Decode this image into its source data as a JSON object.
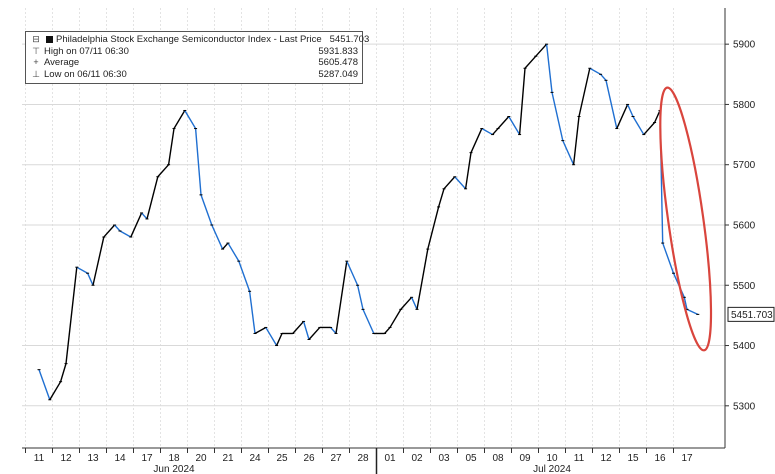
{
  "legend": {
    "rows": [
      {
        "icon": "black-square-icon",
        "label": "Philadelphia Stock Exchange Semiconductor Index - Last Price",
        "value": "5451.703"
      },
      {
        "icon": "high-marker-icon",
        "label": "High on 07/11 06:30",
        "value": "5931.833"
      },
      {
        "icon": "average-marker-icon",
        "label": "Average",
        "value": "5605.478"
      },
      {
        "icon": "low-marker-icon",
        "label": "Low on 06/11 06:30",
        "value": "5287.049"
      }
    ]
  },
  "chart_data": {
    "type": "line",
    "series_name": "Philadelphia Stock Exchange Semiconductor Index",
    "ylim": [
      5230,
      5960
    ],
    "yticks": [
      5300,
      5400,
      5500,
      5600,
      5700,
      5800,
      5900
    ],
    "ytick_labels": [
      "5300",
      "5400",
      "5500",
      "5600",
      "5700",
      "5800",
      "5900"
    ],
    "xticks": [
      "11",
      "12",
      "13",
      "14",
      "17",
      "18",
      "20",
      "21",
      "24",
      "25",
      "26",
      "27",
      "28",
      "01",
      "02",
      "03",
      "05",
      "08",
      "09",
      "10",
      "11",
      "12",
      "15",
      "16",
      "17"
    ],
    "month_labels": [
      {
        "label": "Jun 2024",
        "at_tick": 5
      },
      {
        "label": "Jul 2024",
        "at_tick": 19
      }
    ],
    "last_price_label": "5451.703",
    "last_price": 5451.703,
    "colors": {
      "up": "#000000",
      "down": "#1f6fd1",
      "annotation": "#d9453d"
    },
    "ellipse_annotation": {
      "x_from_tick": 23.3,
      "x_to_tick": 24.6,
      "y_from": 5390,
      "y_to": 5830
    },
    "x_positions": [
      0,
      0.4,
      0.8,
      1,
      1.4,
      1.8,
      2,
      2.4,
      2.8,
      3,
      3.4,
      3.8,
      4,
      4.4,
      4.8,
      5,
      5.4,
      5.8,
      6,
      6.4,
      6.8,
      7,
      7.4,
      7.8,
      8,
      8.4,
      8.8,
      9,
      9.4,
      9.8,
      10,
      10.4,
      10.8,
      11,
      11.4,
      11.8,
      12,
      12.4,
      12.8,
      13,
      13.4,
      13.8,
      14,
      14.4,
      14.8,
      15,
      15.4,
      15.8,
      16,
      16.4,
      16.8,
      17,
      17.4,
      17.8,
      18,
      18.4,
      18.8,
      19,
      19.4,
      19.8,
      20,
      20.4,
      20.8,
      21,
      21.4,
      21.8,
      22,
      22.4,
      22.8,
      23,
      23.1,
      23.5,
      23.9,
      24,
      24.4
    ],
    "values": [
      5360,
      5310,
      5340,
      5370,
      5530,
      5520,
      5500,
      5580,
      5600,
      5590,
      5580,
      5620,
      5610,
      5680,
      5700,
      5760,
      5790,
      5760,
      5650,
      5600,
      5560,
      5570,
      5540,
      5490,
      5420,
      5430,
      5400,
      5420,
      5420,
      5440,
      5410,
      5430,
      5430,
      5420,
      5540,
      5500,
      5460,
      5420,
      5420,
      5430,
      5460,
      5480,
      5460,
      5560,
      5630,
      5660,
      5680,
      5660,
      5720,
      5760,
      5750,
      5760,
      5780,
      5750,
      5860,
      5880,
      5900,
      5820,
      5740,
      5700,
      5780,
      5860,
      5850,
      5840,
      5760,
      5800,
      5780,
      5750,
      5770,
      5790,
      5570,
      5520,
      5480,
      5460,
      5451.703
    ]
  }
}
